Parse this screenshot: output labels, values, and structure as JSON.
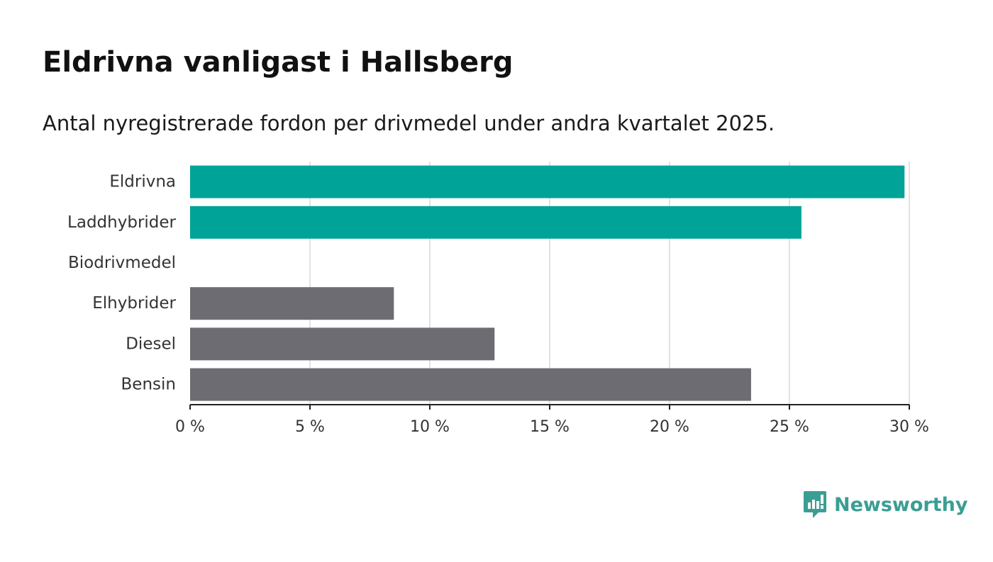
{
  "title": "Eldrivna vanligast i Hallsberg",
  "subtitle": "Antal nyregistrerade fordon per drivmedel under andra kvartalet 2025.",
  "brand": {
    "name": "Newsworthy",
    "icon": "newsworthy-logo-icon",
    "color": "#3a9e93"
  },
  "chart_data": {
    "type": "bar",
    "orientation": "horizontal",
    "title": "",
    "xlabel": "",
    "ylabel": "",
    "categories": [
      "Eldrivna",
      "Laddhybrider",
      "Biodrivmedel",
      "Elhybrider",
      "Diesel",
      "Bensin"
    ],
    "values": [
      29.8,
      25.5,
      0,
      8.5,
      12.7,
      23.4
    ],
    "colors": [
      "#00a398",
      "#00a398",
      "#00a398",
      "#6d6c72",
      "#6d6c72",
      "#6d6c72"
    ],
    "xlim": [
      0,
      30
    ],
    "x_ticks": [
      0,
      5,
      10,
      15,
      20,
      25,
      30
    ],
    "x_tick_labels": [
      "0 %",
      "5 %",
      "10 %",
      "15 %",
      "20 %",
      "25 %",
      "30 %"
    ],
    "grid": true,
    "grid_color": "#d9d9d9",
    "axis_color": "#222222"
  }
}
